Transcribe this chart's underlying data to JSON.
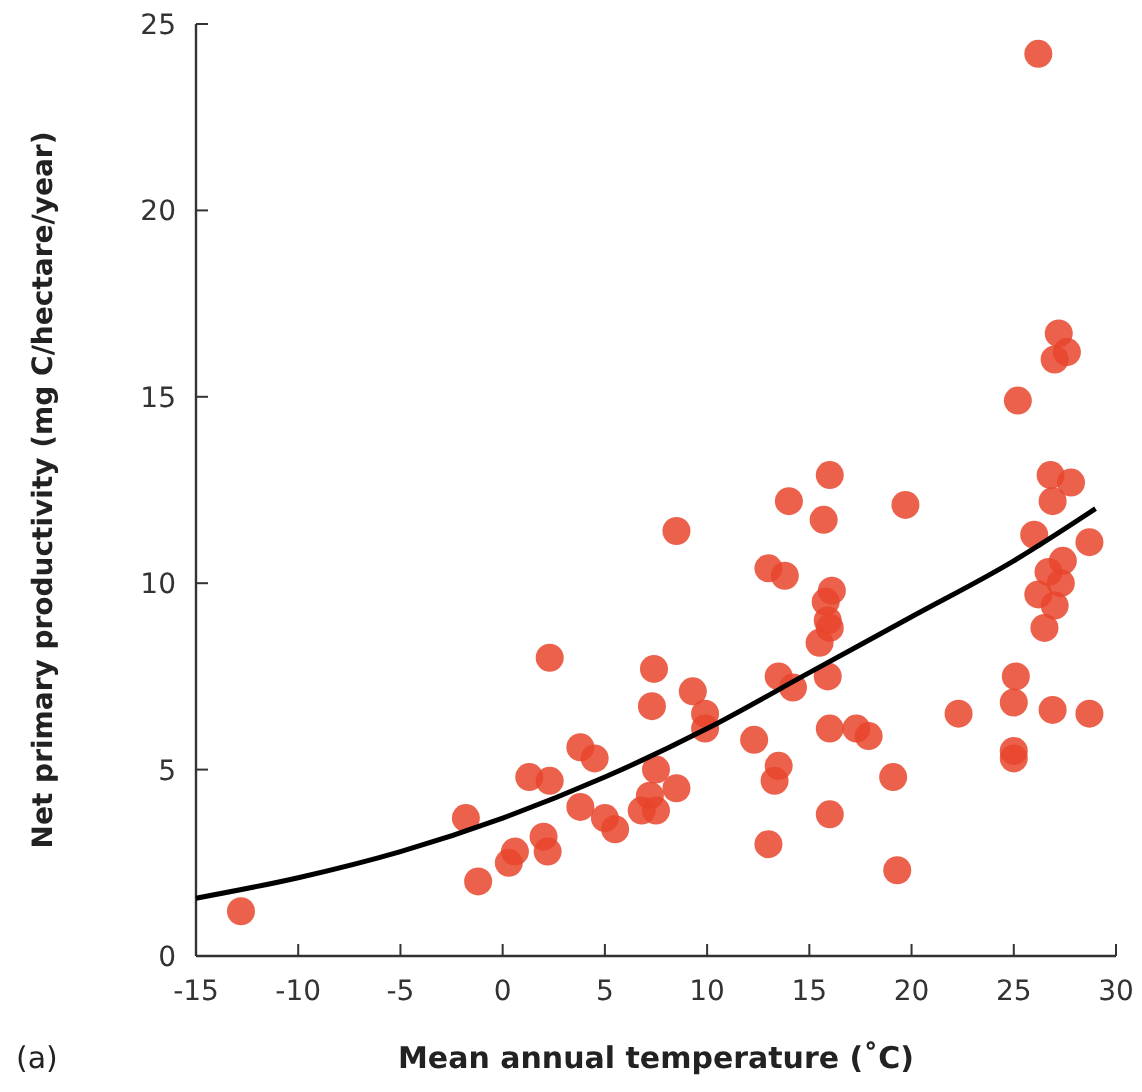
{
  "chart_data": {
    "type": "scatter",
    "xlabel": "Mean annual temperature (˚C)",
    "ylabel": "Net primary productivity (mg C/hectare/year)",
    "annotations": [
      "(a)"
    ],
    "xlim": [
      -15,
      30
    ],
    "ylim": [
      0,
      25
    ],
    "xticks": [
      -15,
      -10,
      -5,
      0,
      5,
      10,
      15,
      20,
      25,
      30
    ],
    "yticks": [
      0,
      5,
      10,
      15,
      20,
      25
    ],
    "grid": false,
    "marker": "circle",
    "series": [
      {
        "color": "#e8452c",
        "x": [
          -12.8,
          -1.8,
          -1.2,
          0.3,
          0.6,
          1.3,
          2.0,
          2.3,
          2.3,
          2.2,
          3.8,
          3.8,
          4.5,
          5.0,
          5.5,
          6.8,
          7.2,
          7.4,
          7.3,
          7.5,
          7.5,
          8.5,
          8.5,
          9.3,
          9.9,
          9.9,
          12.3,
          13.0,
          13.0,
          13.5,
          13.3,
          13.5,
          13.8,
          14.0,
          14.2,
          15.5,
          15.7,
          15.8,
          15.9,
          16.0,
          16.1,
          16.0,
          15.9,
          16.0,
          16.0,
          17.3,
          17.9,
          19.1,
          19.3,
          19.7,
          22.3,
          25.0,
          25.0,
          25.0,
          25.1,
          25.2,
          26.2,
          26.0,
          26.2,
          26.5,
          26.7,
          26.8,
          26.9,
          27.0,
          27.0,
          27.2,
          27.6,
          27.4,
          27.3,
          27.8,
          26.9,
          28.7,
          28.7
        ],
        "values": [
          1.2,
          3.7,
          2.0,
          2.5,
          2.8,
          4.8,
          3.2,
          4.7,
          8.0,
          2.8,
          5.6,
          4.0,
          5.3,
          3.7,
          3.4,
          3.9,
          4.3,
          7.7,
          6.7,
          5.0,
          3.9,
          11.4,
          4.5,
          7.1,
          6.5,
          6.1,
          5.8,
          3.0,
          10.4,
          7.5,
          4.7,
          5.1,
          10.2,
          12.2,
          7.2,
          8.4,
          11.7,
          9.5,
          9.0,
          12.9,
          9.8,
          8.8,
          7.5,
          6.1,
          3.8,
          6.1,
          5.9,
          4.8,
          2.3,
          12.1,
          6.5,
          5.5,
          5.3,
          6.8,
          7.5,
          14.9,
          24.2,
          11.3,
          9.7,
          8.8,
          10.3,
          12.9,
          12.2,
          9.4,
          16.0,
          16.7,
          16.2,
          10.6,
          10.0,
          12.7,
          6.6,
          11.1,
          6.5
        ]
      },
      {
        "type": "line",
        "color": "#000000",
        "marker": "none",
        "x": [
          -15,
          -10,
          -5,
          0,
          5,
          10,
          15,
          20,
          25,
          29
        ],
        "values": [
          1.55,
          2.1,
          2.8,
          3.7,
          4.8,
          6.1,
          7.6,
          9.1,
          10.6,
          12.0
        ]
      }
    ]
  }
}
